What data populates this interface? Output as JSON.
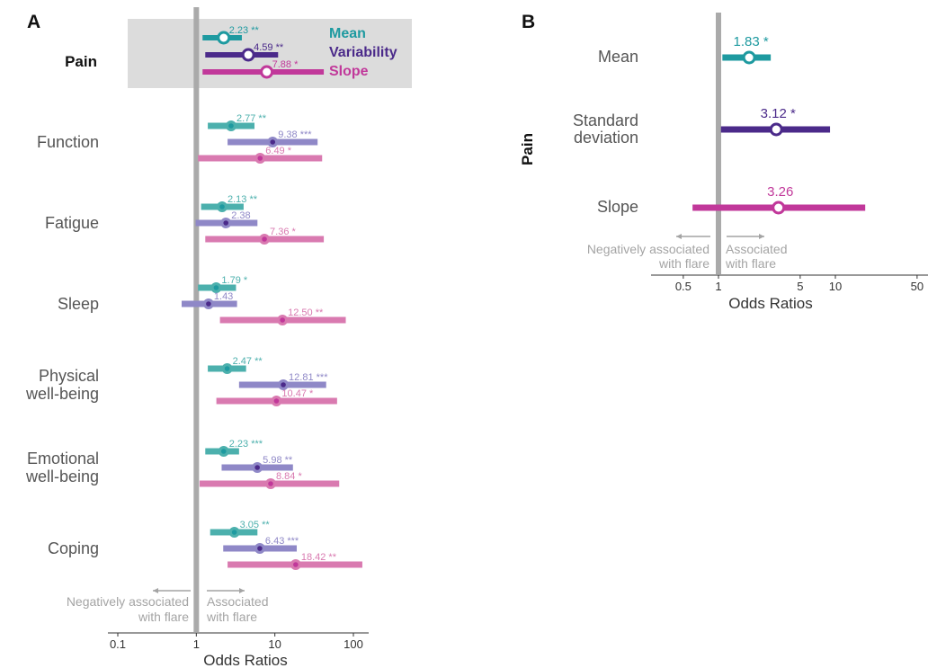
{
  "colors": {
    "mean_dark": "#1e9aa0",
    "var_dark": "#4b2a8a",
    "slope_dark": "#c1389a",
    "mean_light": "#4cb0ad",
    "var_light": "#8f88c7",
    "slope_light": "#d97ab0",
    "refline": "#aaaaaa",
    "highlight": "#dcdcdc",
    "assoc": "#a4a4a4"
  },
  "chart_data": [
    {
      "type": "forest",
      "panel": "A",
      "x_scale": "log",
      "xlim": [
        0.1,
        100
      ],
      "xticks": [
        "0.1",
        "1",
        "10",
        "100"
      ],
      "xlabel": "Odds Ratios",
      "reference_line": 1,
      "legend": [
        {
          "key": "mean",
          "label": "Mean"
        },
        {
          "key": "var",
          "label": "Variability"
        },
        {
          "key": "slope",
          "label": "Slope"
        }
      ],
      "annotations": {
        "left": "Negatively associated\nwith flare",
        "right": "Associated\nwith flare"
      },
      "rows": [
        {
          "label": "Pain",
          "highlight": true,
          "series": [
            {
              "key": "mean",
              "or": 2.23,
              "lo": 1.2,
              "hi": 3.8,
              "label": "2.23 **"
            },
            {
              "key": "var",
              "or": 4.59,
              "lo": 1.3,
              "hi": 11.0,
              "label": "4.59 **"
            },
            {
              "key": "slope",
              "or": 7.88,
              "lo": 1.2,
              "hi": 42.0,
              "label": "7.88 *"
            }
          ]
        },
        {
          "label": "Function",
          "highlight": false,
          "series": [
            {
              "key": "mean",
              "or": 2.77,
              "lo": 1.4,
              "hi": 5.5,
              "label": "2.77 **"
            },
            {
              "key": "var",
              "or": 9.38,
              "lo": 2.5,
              "hi": 35.0,
              "label": "9.38 ***"
            },
            {
              "key": "slope",
              "or": 6.49,
              "lo": 1.05,
              "hi": 40.0,
              "label": "6.49 *"
            }
          ]
        },
        {
          "label": "Fatigue",
          "highlight": false,
          "series": [
            {
              "key": "mean",
              "or": 2.13,
              "lo": 1.15,
              "hi": 4.0,
              "label": "2.13 **"
            },
            {
              "key": "var",
              "or": 2.38,
              "lo": 0.98,
              "hi": 6.0,
              "label": "2.38"
            },
            {
              "key": "slope",
              "or": 7.36,
              "lo": 1.3,
              "hi": 42.0,
              "label": "7.36 *"
            }
          ]
        },
        {
          "label": "Sleep",
          "highlight": false,
          "series": [
            {
              "key": "mean",
              "or": 1.79,
              "lo": 1.05,
              "hi": 3.2,
              "label": "1.79 *"
            },
            {
              "key": "var",
              "or": 1.43,
              "lo": 0.65,
              "hi": 3.3,
              "label": "1.43"
            },
            {
              "key": "slope",
              "or": 12.5,
              "lo": 2.0,
              "hi": 80.0,
              "label": "12.50 **"
            }
          ]
        },
        {
          "label": "Physical\nwell-being",
          "highlight": false,
          "series": [
            {
              "key": "mean",
              "or": 2.47,
              "lo": 1.4,
              "hi": 4.3,
              "label": "2.47 **"
            },
            {
              "key": "var",
              "or": 12.81,
              "lo": 3.5,
              "hi": 45.0,
              "label": "12.81 ***"
            },
            {
              "key": "slope",
              "or": 10.47,
              "lo": 1.8,
              "hi": 62.0,
              "label": "10.47 *"
            }
          ]
        },
        {
          "label": "Emotional\nwell-being",
          "highlight": false,
          "series": [
            {
              "key": "mean",
              "or": 2.23,
              "lo": 1.3,
              "hi": 3.5,
              "label": "2.23 ***"
            },
            {
              "key": "var",
              "or": 5.98,
              "lo": 2.1,
              "hi": 17.0,
              "label": "5.98 **"
            },
            {
              "key": "slope",
              "or": 8.84,
              "lo": 1.1,
              "hi": 66.0,
              "label": "8.84 *"
            }
          ]
        },
        {
          "label": "Coping",
          "highlight": false,
          "series": [
            {
              "key": "mean",
              "or": 3.05,
              "lo": 1.5,
              "hi": 6.0,
              "label": "3.05 **"
            },
            {
              "key": "var",
              "or": 6.43,
              "lo": 2.2,
              "hi": 19.0,
              "label": "6.43 ***"
            },
            {
              "key": "slope",
              "or": 18.42,
              "lo": 2.5,
              "hi": 130.0,
              "label": "18.42 **"
            }
          ]
        }
      ]
    },
    {
      "type": "forest",
      "panel": "B",
      "x_scale": "log",
      "xlim": [
        0.3,
        60
      ],
      "xticks": [
        "0.5",
        "1",
        "5",
        "10",
        "50"
      ],
      "xlabel": "Odds Ratios",
      "ylabel": "Pain",
      "reference_line": 1,
      "annotations": {
        "left": "Negatively associated\nwith flare",
        "right": "Associated\nwith flare"
      },
      "rows": [
        {
          "label": "Mean",
          "key": "mean",
          "or": 1.83,
          "lo": 1.08,
          "hi": 2.8,
          "value_label": "1.83 *"
        },
        {
          "label": "Standard\ndeviation",
          "key": "var",
          "or": 3.12,
          "lo": 1.05,
          "hi": 9.0,
          "value_label": "3.12 *"
        },
        {
          "label": "Slope",
          "key": "slope",
          "or": 3.26,
          "lo": 0.6,
          "hi": 18.0,
          "value_label": "3.26"
        }
      ]
    }
  ]
}
